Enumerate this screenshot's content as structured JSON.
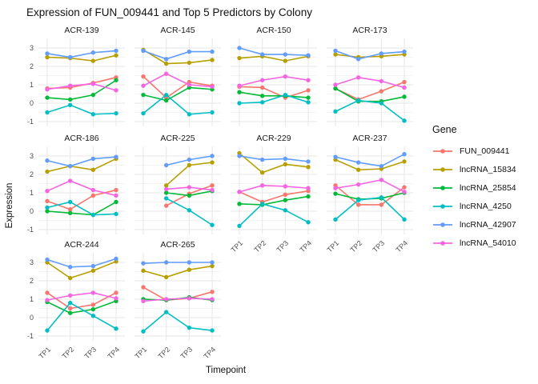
{
  "chart_data": {
    "type": "line",
    "title": "Expression of FUN_009441 and Top 5 Predictors by Colony",
    "xlabel": "Timepoint",
    "ylabel": "Expression",
    "legend_title": "Gene",
    "legend_position": "right",
    "grid": true,
    "categories": [
      "TP1",
      "TP2",
      "TP3",
      "TP4"
    ],
    "yticks": [
      3,
      2,
      1,
      0,
      -1
    ],
    "y_minor": [
      2.5,
      1.5,
      0.5,
      -0.5
    ],
    "ylim": [
      -1.25,
      3.5
    ],
    "series_names": [
      "FUN_009441",
      "lncRNA_15834",
      "lncRNA_25854",
      "lncRNA_4250",
      "lncRNA_42907",
      "lncRNA_54010"
    ],
    "series_colors": {
      "FUN_009441": "#F8766D",
      "lncRNA_15834": "#B79F00",
      "lncRNA_25854": "#00BA38",
      "lncRNA_4250": "#00BFC4",
      "lncRNA_42907": "#619CFF",
      "lncRNA_54010": "#F564E3"
    },
    "facets": [
      {
        "colony": "ACR-139",
        "row": 0,
        "col": 0,
        "x_axis": false,
        "series": [
          {
            "name": "FUN_009441",
            "values": [
              0.8,
              0.85,
              1.1,
              1.4
            ]
          },
          {
            "name": "lncRNA_15834",
            "values": [
              2.5,
              2.45,
              2.3,
              2.6
            ]
          },
          {
            "name": "lncRNA_25854",
            "values": [
              0.3,
              0.2,
              0.45,
              1.25
            ]
          },
          {
            "name": "lncRNA_4250",
            "values": [
              -0.5,
              -0.1,
              -0.6,
              -0.55
            ]
          },
          {
            "name": "lncRNA_42907",
            "values": [
              2.7,
              2.5,
              2.75,
              2.85
            ]
          },
          {
            "name": "lncRNA_54010",
            "values": [
              0.75,
              0.95,
              1.05,
              0.7
            ]
          }
        ]
      },
      {
        "colony": "ACR-145",
        "row": 0,
        "col": 1,
        "x_axis": false,
        "series": [
          {
            "name": "FUN_009441",
            "values": [
              1.45,
              0.3,
              1.15,
              0.95
            ]
          },
          {
            "name": "lncRNA_15834",
            "values": [
              2.9,
              2.15,
              2.2,
              2.35
            ]
          },
          {
            "name": "lncRNA_25854",
            "values": [
              0.45,
              0.15,
              0.85,
              0.75
            ]
          },
          {
            "name": "lncRNA_4250",
            "values": [
              -0.55,
              0.45,
              -0.6,
              -0.5
            ]
          },
          {
            "name": "lncRNA_42907",
            "values": [
              2.85,
              2.4,
              2.8,
              2.8
            ]
          },
          {
            "name": "lncRNA_54010",
            "values": [
              0.95,
              1.6,
              1.0,
              0.9
            ]
          }
        ]
      },
      {
        "colony": "ACR-150",
        "row": 0,
        "col": 2,
        "x_axis": false,
        "series": [
          {
            "name": "FUN_009441",
            "values": [
              0.9,
              0.85,
              0.3,
              0.7
            ]
          },
          {
            "name": "lncRNA_15834",
            "values": [
              2.45,
              2.55,
              2.3,
              2.55
            ]
          },
          {
            "name": "lncRNA_25854",
            "values": [
              0.6,
              0.4,
              0.4,
              0.3
            ]
          },
          {
            "name": "lncRNA_4250",
            "values": [
              0,
              0.05,
              0.45,
              0.05
            ]
          },
          {
            "name": "lncRNA_42907",
            "values": [
              3.0,
              2.65,
              2.65,
              2.6
            ]
          },
          {
            "name": "lncRNA_54010",
            "values": [
              0.95,
              1.25,
              1.45,
              1.25
            ]
          }
        ]
      },
      {
        "colony": "ACR-173",
        "row": 0,
        "col": 3,
        "x_axis": false,
        "series": [
          {
            "name": "FUN_009441",
            "values": [
              0.8,
              0.2,
              0.65,
              1.15
            ]
          },
          {
            "name": "lncRNA_15834",
            "values": [
              2.65,
              2.5,
              2.55,
              2.65
            ]
          },
          {
            "name": "lncRNA_25854",
            "values": [
              0.8,
              0.1,
              0.1,
              0.35
            ]
          },
          {
            "name": "lncRNA_4250",
            "values": [
              -0.45,
              0.15,
              0,
              -0.95
            ]
          },
          {
            "name": "lncRNA_42907",
            "values": [
              2.85,
              2.4,
              2.7,
              2.8
            ]
          },
          {
            "name": "lncRNA_54010",
            "values": [
              1.0,
              1.4,
              1.2,
              0.85
            ]
          }
        ]
      },
      {
        "colony": "ACR-186",
        "row": 1,
        "col": 0,
        "x_axis": false,
        "series": [
          {
            "name": "FUN_009441",
            "values": [
              0.55,
              0.1,
              0.85,
              1.15
            ]
          },
          {
            "name": "lncRNA_15834",
            "values": [
              2.15,
              2.45,
              2.25,
              2.85
            ]
          },
          {
            "name": "lncRNA_25854",
            "values": [
              0,
              -0.1,
              -0.2,
              0.5
            ]
          },
          {
            "name": "lncRNA_4250",
            "values": [
              0.2,
              0.5,
              -0.2,
              -0.15
            ]
          },
          {
            "name": "lncRNA_42907",
            "values": [
              2.75,
              2.45,
              2.85,
              2.95
            ]
          },
          {
            "name": "lncRNA_54010",
            "values": [
              1.1,
              1.65,
              1.15,
              0.85
            ]
          }
        ]
      },
      {
        "colony": "ACR-225",
        "row": 1,
        "col": 1,
        "x_axis": false,
        "series": [
          {
            "name": "FUN_009441",
            "values": [
              null,
              0.3,
              0.95,
              1.4
            ]
          },
          {
            "name": "lncRNA_15834",
            "values": [
              null,
              1.4,
              2.5,
              2.65
            ]
          },
          {
            "name": "lncRNA_25854",
            "values": [
              null,
              1.0,
              0.85,
              1.1
            ]
          },
          {
            "name": "lncRNA_4250",
            "values": [
              null,
              0.7,
              0.05,
              -0.75
            ]
          },
          {
            "name": "lncRNA_42907",
            "values": [
              null,
              2.5,
              2.8,
              3.0
            ]
          },
          {
            "name": "lncRNA_54010",
            "values": [
              null,
              1.2,
              1.3,
              1.15
            ]
          }
        ]
      },
      {
        "colony": "ACR-229",
        "row": 1,
        "col": 2,
        "x_axis": true,
        "series": [
          {
            "name": "FUN_009441",
            "values": [
              1.05,
              0.5,
              0.9,
              1.1
            ]
          },
          {
            "name": "lncRNA_15834",
            "values": [
              3.15,
              2.1,
              2.55,
              2.4
            ]
          },
          {
            "name": "lncRNA_25854",
            "values": [
              0.4,
              0.35,
              0.6,
              0.8
            ]
          },
          {
            "name": "lncRNA_4250",
            "values": [
              -0.8,
              0.4,
              0.05,
              -0.6
            ]
          },
          {
            "name": "lncRNA_42907",
            "values": [
              3.0,
              2.8,
              2.85,
              2.7
            ]
          },
          {
            "name": "lncRNA_54010",
            "values": [
              1.05,
              1.4,
              1.35,
              1.25
            ]
          }
        ]
      },
      {
        "colony": "ACR-237",
        "row": 1,
        "col": 3,
        "x_axis": true,
        "series": [
          {
            "name": "FUN_009441",
            "values": [
              1.4,
              0.35,
              0.35,
              1.3
            ]
          },
          {
            "name": "lncRNA_15834",
            "values": [
              2.8,
              2.25,
              2.3,
              2.7
            ]
          },
          {
            "name": "lncRNA_25854",
            "values": [
              0.95,
              0.65,
              0.7,
              1.0
            ]
          },
          {
            "name": "lncRNA_4250",
            "values": [
              -0.45,
              0.6,
              0.75,
              -0.45
            ]
          },
          {
            "name": "lncRNA_42907",
            "values": [
              2.95,
              2.65,
              2.45,
              3.1
            ]
          },
          {
            "name": "lncRNA_54010",
            "values": [
              1.25,
              1.45,
              1.7,
              1.05
            ]
          }
        ]
      },
      {
        "colony": "ACR-244",
        "row": 2,
        "col": 0,
        "x_axis": true,
        "series": [
          {
            "name": "FUN_009441",
            "values": [
              1.35,
              0.5,
              0.7,
              1.35
            ]
          },
          {
            "name": "lncRNA_15834",
            "values": [
              3.0,
              2.15,
              2.55,
              3.05
            ]
          },
          {
            "name": "lncRNA_25854",
            "values": [
              0.85,
              0.25,
              0.45,
              0.9
            ]
          },
          {
            "name": "lncRNA_4250",
            "values": [
              -0.7,
              0.8,
              0.1,
              -0.6
            ]
          },
          {
            "name": "lncRNA_42907",
            "values": [
              3.15,
              2.75,
              2.8,
              3.2
            ]
          },
          {
            "name": "lncRNA_54010",
            "values": [
              0.95,
              1.2,
              1.35,
              1.05
            ]
          }
        ]
      },
      {
        "colony": "ACR-265",
        "row": 2,
        "col": 1,
        "x_axis": true,
        "series": [
          {
            "name": "FUN_009441",
            "values": [
              1.65,
              0.95,
              1.05,
              1.4
            ]
          },
          {
            "name": "lncRNA_15834",
            "values": [
              2.55,
              2.2,
              2.6,
              2.8
            ]
          },
          {
            "name": "lncRNA_25854",
            "values": [
              1.0,
              0.95,
              1.1,
              0.95
            ]
          },
          {
            "name": "lncRNA_4250",
            "values": [
              -0.75,
              0.3,
              -0.55,
              -0.7
            ]
          },
          {
            "name": "lncRNA_42907",
            "values": [
              2.95,
              3.0,
              3.0,
              3.0
            ]
          },
          {
            "name": "lncRNA_54010",
            "values": [
              0.9,
              1.0,
              1.05,
              1.0
            ]
          }
        ]
      }
    ]
  }
}
